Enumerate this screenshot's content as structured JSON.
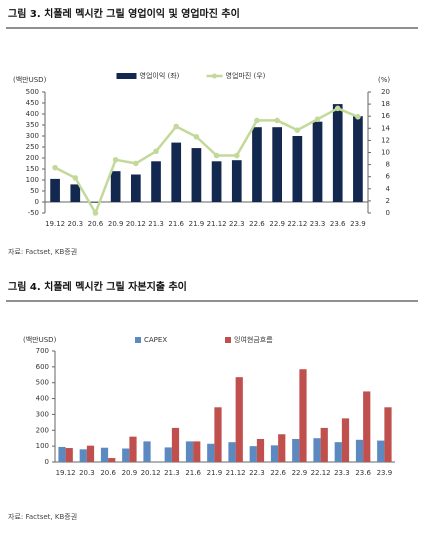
{
  "chart_data": [
    {
      "type": "combo",
      "title": "그림 3. 치폴레 멕시칸 그릴 영업이익 및 영업마진 추이",
      "ylabel": "(백만USD)",
      "y2label": "(%)",
      "categories": [
        "19.12",
        "20.3",
        "20.6",
        "20.9",
        "20.12",
        "21.3",
        "21.6",
        "21.9",
        "21.12",
        "22.3",
        "22.6",
        "22.9",
        "22.12",
        "23.3",
        "23.6",
        "23.9"
      ],
      "series": [
        {
          "name": "영업이익 (좌)",
          "mark": "bar",
          "color": "#12284f",
          "values": [
            105,
            80,
            -3,
            140,
            125,
            185,
            270,
            245,
            185,
            190,
            340,
            340,
            300,
            365,
            445,
            390
          ]
        },
        {
          "name": "영업마진 (우)",
          "mark": "line",
          "axis": "y2",
          "color": "#c3d99a",
          "values": [
            7.5,
            5.8,
            0,
            8.8,
            8.2,
            10.2,
            14.3,
            12.6,
            9.5,
            9.5,
            15.3,
            15.3,
            13.7,
            15.5,
            17.3,
            15.9
          ]
        }
      ],
      "ylim": [
        -50,
        500
      ],
      "yticks": [
        -50,
        0,
        50,
        100,
        150,
        200,
        250,
        300,
        350,
        400,
        450,
        500
      ],
      "y2lim": [
        0,
        20
      ],
      "y2ticks": [
        0,
        2,
        4,
        6,
        8,
        10,
        12,
        14,
        16,
        18,
        20
      ],
      "source": "자료: Factset, KB증권"
    },
    {
      "type": "bar",
      "title": "그림 4. 치폴레 멕시칸 그릴 자본지출 추이",
      "ylabel": "(백만USD)",
      "categories": [
        "19.12",
        "20.3",
        "20.6",
        "20.9",
        "20.12",
        "21.3",
        "21.6",
        "21.9",
        "21.12",
        "22.3",
        "22.6",
        "22.9",
        "22.12",
        "23.3",
        "23.6",
        "23.9"
      ],
      "series": [
        {
          "name": "CAPEX",
          "mark": "bar",
          "color": "#5b89c0",
          "values": [
            95,
            80,
            90,
            85,
            130,
            92,
            130,
            115,
            125,
            100,
            105,
            145,
            150,
            125,
            140,
            135
          ]
        },
        {
          "name": "잉여현금흐름",
          "mark": "bar",
          "color": "#c0504d",
          "values": [
            88,
            103,
            25,
            160,
            0,
            215,
            130,
            345,
            535,
            145,
            175,
            585,
            215,
            275,
            445,
            345
          ]
        }
      ],
      "ylim": [
        0,
        700
      ],
      "yticks": [
        0,
        100,
        200,
        300,
        400,
        500,
        600,
        700
      ],
      "source": "자료: Factset, KB증권"
    }
  ]
}
